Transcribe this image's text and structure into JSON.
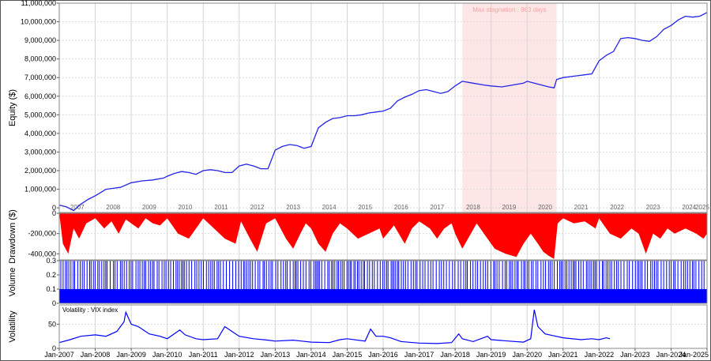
{
  "chart_data": {
    "type": "line",
    "panels": {
      "equity": {
        "ylabel": "Equity ($)",
        "ylim": [
          -250000,
          11000000
        ],
        "yticks": [
          0,
          1000000,
          2000000,
          3000000,
          4000000,
          5000000,
          6000000,
          7000000,
          8000000,
          9000000,
          10000000,
          11000000
        ],
        "ytick_labels": [
          "0",
          "1,000,000",
          "2,000,000",
          "3,000,000",
          "4,000,000",
          "5,000,000",
          "6,000,000",
          "7,000,000",
          "8,000,000",
          "9,000,000",
          "10,000,000",
          "11,000,000"
        ],
        "year_labels": [
          "2007",
          "2008",
          "2009",
          "2010",
          "2011",
          "2012",
          "2013",
          "2014",
          "2015",
          "2016",
          "2017",
          "2018",
          "2019",
          "2020",
          "2021",
          "2022",
          "2023",
          "2024",
          "2025"
        ],
        "stagnation": {
          "label": "Max stagnation : 963 days",
          "start": 2018.2,
          "end": 2020.82,
          "fill": "#fde6e6",
          "text_color": "#f3a6a6"
        },
        "series": {
          "color": "#2424e6",
          "x": [
            2007.0,
            2007.2,
            2007.4,
            2007.6,
            2007.8,
            2008.0,
            2008.3,
            2008.5,
            2008.7,
            2009.0,
            2009.3,
            2009.6,
            2009.9,
            2010.0,
            2010.2,
            2010.4,
            2010.6,
            2010.8,
            2011.0,
            2011.2,
            2011.4,
            2011.6,
            2011.8,
            2012.0,
            2012.2,
            2012.4,
            2012.6,
            2012.8,
            2013.0,
            2013.2,
            2013.4,
            2013.6,
            2013.8,
            2014.0,
            2014.2,
            2014.4,
            2014.6,
            2014.8,
            2015.0,
            2015.2,
            2015.4,
            2015.6,
            2015.8,
            2016.0,
            2016.2,
            2016.4,
            2016.6,
            2016.8,
            2017.0,
            2017.2,
            2017.4,
            2017.6,
            2017.8,
            2018.0,
            2018.2,
            2018.5,
            2018.8,
            2019.0,
            2019.3,
            2019.6,
            2019.9,
            2020.0,
            2020.2,
            2020.4,
            2020.6,
            2020.75,
            2020.82,
            2021.0,
            2021.2,
            2021.4,
            2021.6,
            2021.8,
            2022.0,
            2022.2,
            2022.4,
            2022.6,
            2022.8,
            2023.0,
            2023.2,
            2023.4,
            2023.6,
            2023.8,
            2024.0,
            2024.2,
            2024.4,
            2024.6,
            2024.8,
            2025.0
          ],
          "y": [
            150000,
            50000,
            -150000,
            200000,
            450000,
            650000,
            1000000,
            1050000,
            1100000,
            1350000,
            1450000,
            1500000,
            1600000,
            1700000,
            1850000,
            1950000,
            1900000,
            1800000,
            2000000,
            2050000,
            2000000,
            1900000,
            1900000,
            2250000,
            2350000,
            2250000,
            2100000,
            2100000,
            3100000,
            3300000,
            3400000,
            3350000,
            3200000,
            3300000,
            4300000,
            4600000,
            4800000,
            4850000,
            4950000,
            4950000,
            5000000,
            5100000,
            5150000,
            5200000,
            5350000,
            5750000,
            5950000,
            6100000,
            6300000,
            6350000,
            6250000,
            6150000,
            6250000,
            6550000,
            6800000,
            6700000,
            6600000,
            6550000,
            6500000,
            6600000,
            6700000,
            6800000,
            6700000,
            6600000,
            6500000,
            6450000,
            6900000,
            7000000,
            7050000,
            7100000,
            7150000,
            7200000,
            7900000,
            8200000,
            8400000,
            9100000,
            9150000,
            9100000,
            9000000,
            8950000,
            9200000,
            9600000,
            9800000,
            10100000,
            10300000,
            10250000,
            10300000,
            10500000
          ]
        }
      },
      "drawdown": {
        "ylabel": "Drawdown ($)",
        "ylim": [
          -460000,
          0
        ],
        "yticks": [
          0,
          -200000,
          -400000
        ],
        "ytick_labels": [
          "0",
          "-200,000",
          "-400,000"
        ],
        "color": "#ff0000",
        "x": [
          2007.0,
          2007.1,
          2007.25,
          2007.4,
          2007.55,
          2007.75,
          2008.0,
          2008.25,
          2008.45,
          2008.65,
          2008.85,
          2009.0,
          2009.2,
          2009.4,
          2009.6,
          2009.8,
          2010.0,
          2010.3,
          2010.6,
          2010.8,
          2011.0,
          2011.3,
          2011.6,
          2011.9,
          2012.05,
          2012.3,
          2012.5,
          2012.75,
          2013.0,
          2013.3,
          2013.5,
          2013.7,
          2013.85,
          2014.0,
          2014.2,
          2014.4,
          2014.6,
          2014.8,
          2015.0,
          2015.3,
          2015.6,
          2015.9,
          2016.0,
          2016.3,
          2016.6,
          2016.8,
          2017.0,
          2017.3,
          2017.5,
          2017.7,
          2017.9,
          2018.0,
          2018.2,
          2018.6,
          2018.9,
          2019.1,
          2019.4,
          2019.7,
          2019.9,
          2020.1,
          2020.3,
          2020.45,
          2020.6,
          2020.75,
          2020.85,
          2021.0,
          2021.3,
          2021.6,
          2021.9,
          2022.0,
          2022.3,
          2022.6,
          2022.9,
          2023.1,
          2023.3,
          2023.5,
          2023.7,
          2023.9,
          2024.1,
          2024.4,
          2024.7,
          2024.9,
          2025.0
        ],
        "values": [
          0,
          -300000,
          -400000,
          -150000,
          -250000,
          -100000,
          -50000,
          -150000,
          -80000,
          -200000,
          -60000,
          -100000,
          -150000,
          -50000,
          -100000,
          -120000,
          -50000,
          -200000,
          -250000,
          -150000,
          -50000,
          -150000,
          -250000,
          -300000,
          -80000,
          -250000,
          -380000,
          -100000,
          -50000,
          -250000,
          -350000,
          -200000,
          -100000,
          -150000,
          -300000,
          -380000,
          -200000,
          -100000,
          -150000,
          -250000,
          -200000,
          -150000,
          -250000,
          -120000,
          -300000,
          -150000,
          -80000,
          -150000,
          -250000,
          -150000,
          -100000,
          -200000,
          -350000,
          -100000,
          -250000,
          -350000,
          -400000,
          -430000,
          -300000,
          -200000,
          -300000,
          -380000,
          -420000,
          -450000,
          -100000,
          -50000,
          -100000,
          -80000,
          -150000,
          -50000,
          -200000,
          -250000,
          -150000,
          -200000,
          -400000,
          -200000,
          -250000,
          -150000,
          -200000,
          -150000,
          -200000,
          -250000,
          -200000
        ]
      },
      "volume": {
        "ylabel": "Volume",
        "ylim": [
          0,
          0.3
        ],
        "yticks": [
          0,
          0.1,
          0.2,
          0.3
        ],
        "ytick_labels": [
          "0",
          "0.1",
          "0.2",
          "0.3"
        ],
        "color": "#0000ff",
        "base_level": 0.1,
        "spike_level": 0.3
      },
      "volatility": {
        "ylabel": "Volatility",
        "legend": "Volatility : VIX index",
        "ylim": [
          0,
          90
        ],
        "yticks": [
          0,
          50
        ],
        "ytick_labels": [
          "0",
          "50"
        ],
        "color": "#0000ff",
        "x": [
          2007.0,
          2007.3,
          2007.6,
          2008.0,
          2008.3,
          2008.6,
          2008.8,
          2008.85,
          2009.0,
          2009.2,
          2009.5,
          2009.8,
          2010.0,
          2010.35,
          2010.5,
          2010.8,
          2011.0,
          2011.4,
          2011.6,
          2011.8,
          2012.0,
          2012.4,
          2012.8,
          2013.0,
          2013.5,
          2014.0,
          2014.5,
          2014.8,
          2015.0,
          2015.5,
          2015.65,
          2015.8,
          2016.0,
          2016.2,
          2016.5,
          2017.0,
          2017.5,
          2017.9,
          2018.1,
          2018.2,
          2018.5,
          2018.9,
          2019.0,
          2019.5,
          2019.9,
          2020.1,
          2020.2,
          2020.3,
          2020.5,
          2020.8,
          2021.0,
          2021.5,
          2021.8,
          2022.0,
          2022.2,
          2022.3
        ],
        "values": [
          12,
          18,
          25,
          28,
          25,
          35,
          55,
          75,
          50,
          45,
          30,
          25,
          20,
          38,
          28,
          20,
          18,
          20,
          45,
          35,
          25,
          20,
          17,
          15,
          17,
          13,
          12,
          18,
          20,
          15,
          40,
          25,
          25,
          22,
          14,
          11,
          10,
          12,
          30,
          20,
          14,
          25,
          18,
          15,
          13,
          20,
          80,
          45,
          30,
          25,
          22,
          18,
          20,
          18,
          22,
          20
        ]
      }
    },
    "x_axis": {
      "range": [
        2007.0,
        2025.0
      ],
      "tick_labels": [
        "Jan-2007",
        "Jan-2008",
        "Jan-2009",
        "Jan-2010",
        "Jan-2011",
        "Jan-2012",
        "Jan-2013",
        "Jan-2014",
        "Jan-2015",
        "Jan-2016",
        "Jan-2017",
        "Jan-2018",
        "Jan-2019",
        "Jan-2020",
        "Jan-2021",
        "Jan-2022",
        "Jan-2023",
        "Jan-2024",
        "Jan-2025"
      ]
    },
    "grid": true
  }
}
